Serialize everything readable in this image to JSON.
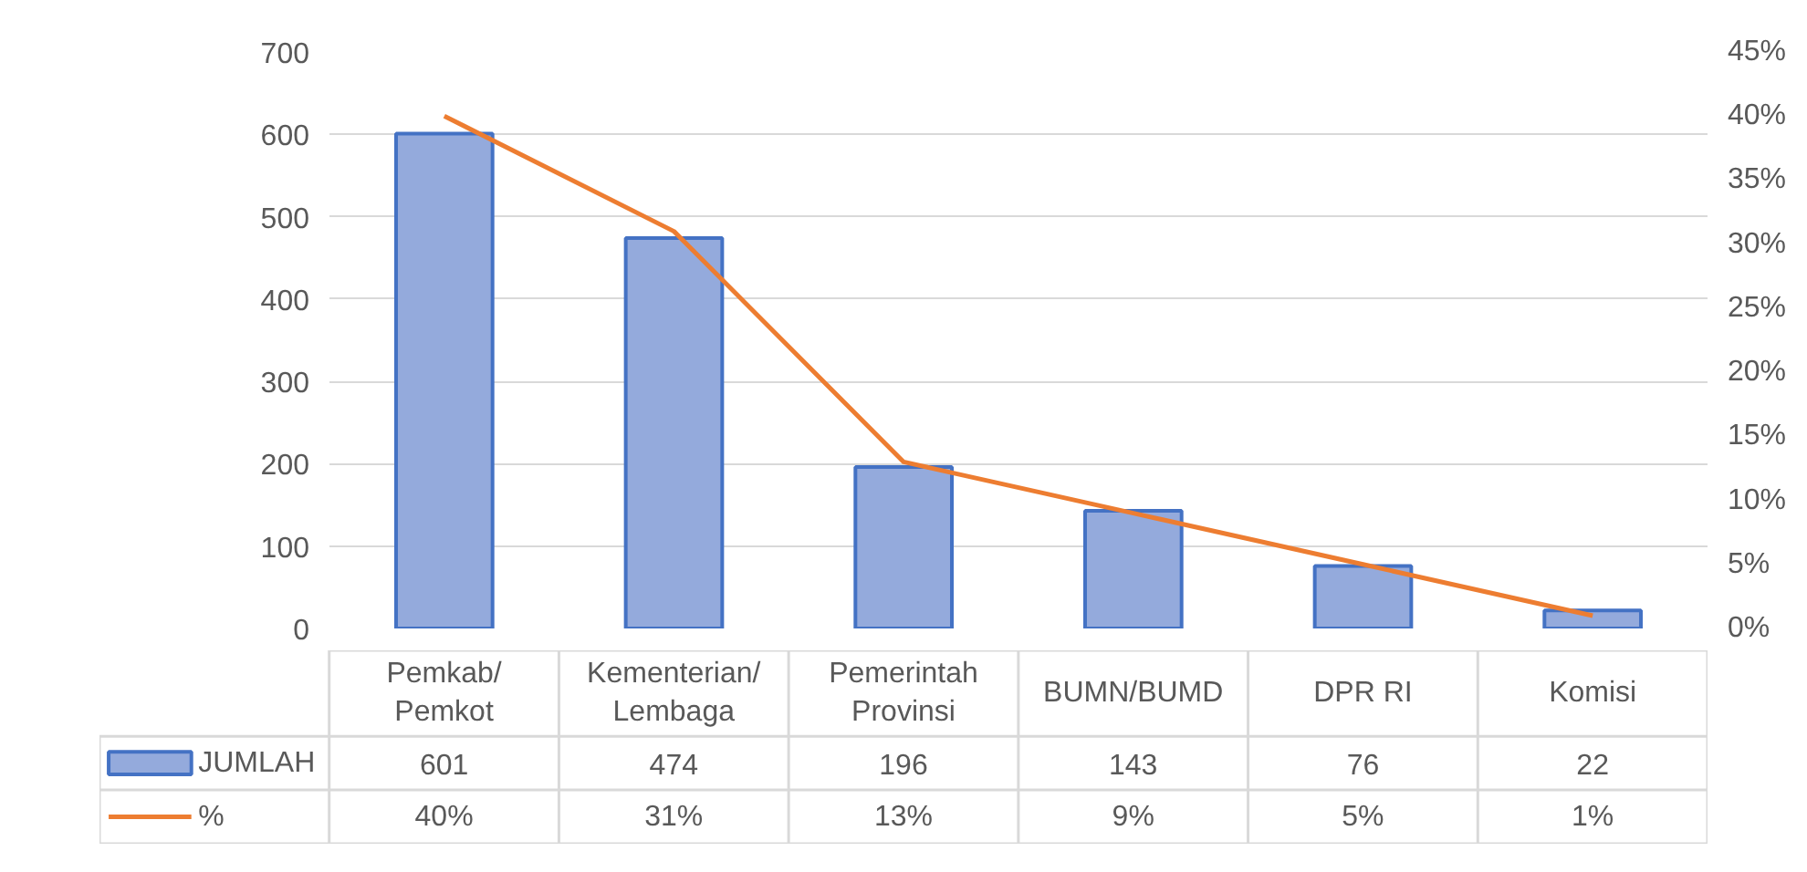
{
  "chart_data": {
    "type": "bar",
    "categories": [
      "Pemkab/\nPemkot",
      "Kementerian/\nLembaga",
      "Pemerintah\nProvinsi",
      "BUMN/BUMD",
      "DPR RI",
      "Komisi"
    ],
    "series": [
      {
        "name": "JUMLAH",
        "color": "#94aadc",
        "values": [
          601,
          474,
          196,
          143,
          76,
          22
        ],
        "value_labels": [
          "601",
          "474",
          "196",
          "143",
          "76",
          "22"
        ]
      },
      {
        "name": "%",
        "type": "line",
        "axis": "y2",
        "color": "#ed7d31",
        "values": [
          40,
          31,
          13,
          9,
          5,
          1
        ],
        "value_labels": [
          "40%",
          "31%",
          "13%",
          "9%",
          "5%",
          "1%"
        ]
      }
    ],
    "ylim": [
      0,
      700
    ],
    "yticks": [
      0,
      100,
      200,
      300,
      400,
      500,
      600,
      700
    ],
    "y2lim": [
      0,
      45
    ],
    "y2ticks": [
      {
        "value": 0,
        "label": "0%"
      },
      {
        "value": 5,
        "label": "5%"
      },
      {
        "value": 10,
        "label": "10%"
      },
      {
        "value": 15,
        "label": "15%"
      },
      {
        "value": 20,
        "label": "20%"
      },
      {
        "value": 25,
        "label": "25%"
      },
      {
        "value": 30,
        "label": "30%"
      },
      {
        "value": 35,
        "label": "35%"
      },
      {
        "value": 40,
        "label": "40%"
      },
      {
        "value": 45,
        "label": "45%"
      }
    ],
    "grid": "y",
    "legend": "bottom",
    "marker": "none",
    "line_style": "solid"
  }
}
